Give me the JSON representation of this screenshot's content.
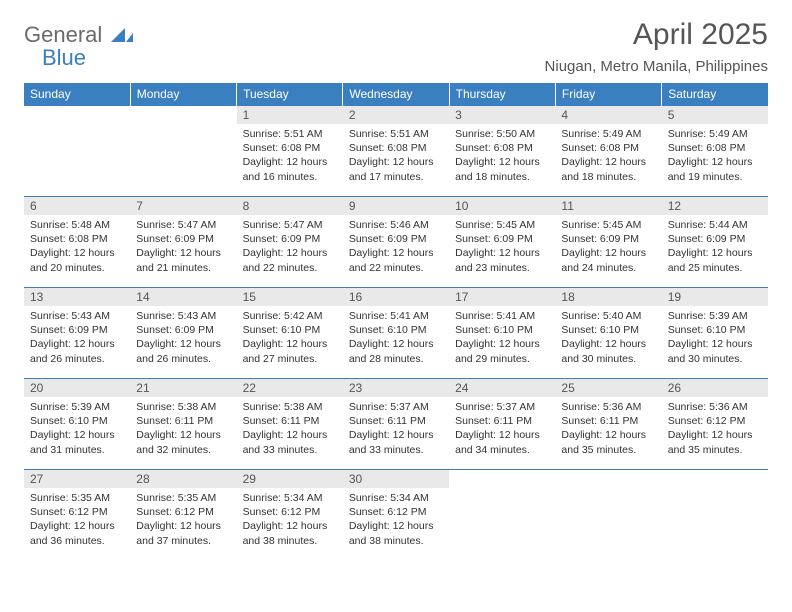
{
  "logo": {
    "word1": "General",
    "word2": "Blue"
  },
  "title": "April 2025",
  "location": "Niugan, Metro Manila, Philippines",
  "colors": {
    "header_bg": "#3a7fbf",
    "header_text": "#ffffff",
    "daynum_bg": "#e9e9e9",
    "text": "#333333",
    "title_text": "#555555",
    "row_border": "#3a7fbf"
  },
  "typography": {
    "title_fontsize": 30,
    "location_fontsize": 15,
    "dayheader_fontsize": 12,
    "cell_fontsize": 10.5
  },
  "day_headers": [
    "Sunday",
    "Monday",
    "Tuesday",
    "Wednesday",
    "Thursday",
    "Friday",
    "Saturday"
  ],
  "weeks": [
    [
      {
        "num": "",
        "lines": []
      },
      {
        "num": "",
        "lines": []
      },
      {
        "num": "1",
        "lines": [
          "Sunrise: 5:51 AM",
          "Sunset: 6:08 PM",
          "Daylight: 12 hours",
          "and 16 minutes."
        ]
      },
      {
        "num": "2",
        "lines": [
          "Sunrise: 5:51 AM",
          "Sunset: 6:08 PM",
          "Daylight: 12 hours",
          "and 17 minutes."
        ]
      },
      {
        "num": "3",
        "lines": [
          "Sunrise: 5:50 AM",
          "Sunset: 6:08 PM",
          "Daylight: 12 hours",
          "and 18 minutes."
        ]
      },
      {
        "num": "4",
        "lines": [
          "Sunrise: 5:49 AM",
          "Sunset: 6:08 PM",
          "Daylight: 12 hours",
          "and 18 minutes."
        ]
      },
      {
        "num": "5",
        "lines": [
          "Sunrise: 5:49 AM",
          "Sunset: 6:08 PM",
          "Daylight: 12 hours",
          "and 19 minutes."
        ]
      }
    ],
    [
      {
        "num": "6",
        "lines": [
          "Sunrise: 5:48 AM",
          "Sunset: 6:08 PM",
          "Daylight: 12 hours",
          "and 20 minutes."
        ]
      },
      {
        "num": "7",
        "lines": [
          "Sunrise: 5:47 AM",
          "Sunset: 6:09 PM",
          "Daylight: 12 hours",
          "and 21 minutes."
        ]
      },
      {
        "num": "8",
        "lines": [
          "Sunrise: 5:47 AM",
          "Sunset: 6:09 PM",
          "Daylight: 12 hours",
          "and 22 minutes."
        ]
      },
      {
        "num": "9",
        "lines": [
          "Sunrise: 5:46 AM",
          "Sunset: 6:09 PM",
          "Daylight: 12 hours",
          "and 22 minutes."
        ]
      },
      {
        "num": "10",
        "lines": [
          "Sunrise: 5:45 AM",
          "Sunset: 6:09 PM",
          "Daylight: 12 hours",
          "and 23 minutes."
        ]
      },
      {
        "num": "11",
        "lines": [
          "Sunrise: 5:45 AM",
          "Sunset: 6:09 PM",
          "Daylight: 12 hours",
          "and 24 minutes."
        ]
      },
      {
        "num": "12",
        "lines": [
          "Sunrise: 5:44 AM",
          "Sunset: 6:09 PM",
          "Daylight: 12 hours",
          "and 25 minutes."
        ]
      }
    ],
    [
      {
        "num": "13",
        "lines": [
          "Sunrise: 5:43 AM",
          "Sunset: 6:09 PM",
          "Daylight: 12 hours",
          "and 26 minutes."
        ]
      },
      {
        "num": "14",
        "lines": [
          "Sunrise: 5:43 AM",
          "Sunset: 6:09 PM",
          "Daylight: 12 hours",
          "and 26 minutes."
        ]
      },
      {
        "num": "15",
        "lines": [
          "Sunrise: 5:42 AM",
          "Sunset: 6:10 PM",
          "Daylight: 12 hours",
          "and 27 minutes."
        ]
      },
      {
        "num": "16",
        "lines": [
          "Sunrise: 5:41 AM",
          "Sunset: 6:10 PM",
          "Daylight: 12 hours",
          "and 28 minutes."
        ]
      },
      {
        "num": "17",
        "lines": [
          "Sunrise: 5:41 AM",
          "Sunset: 6:10 PM",
          "Daylight: 12 hours",
          "and 29 minutes."
        ]
      },
      {
        "num": "18",
        "lines": [
          "Sunrise: 5:40 AM",
          "Sunset: 6:10 PM",
          "Daylight: 12 hours",
          "and 30 minutes."
        ]
      },
      {
        "num": "19",
        "lines": [
          "Sunrise: 5:39 AM",
          "Sunset: 6:10 PM",
          "Daylight: 12 hours",
          "and 30 minutes."
        ]
      }
    ],
    [
      {
        "num": "20",
        "lines": [
          "Sunrise: 5:39 AM",
          "Sunset: 6:10 PM",
          "Daylight: 12 hours",
          "and 31 minutes."
        ]
      },
      {
        "num": "21",
        "lines": [
          "Sunrise: 5:38 AM",
          "Sunset: 6:11 PM",
          "Daylight: 12 hours",
          "and 32 minutes."
        ]
      },
      {
        "num": "22",
        "lines": [
          "Sunrise: 5:38 AM",
          "Sunset: 6:11 PM",
          "Daylight: 12 hours",
          "and 33 minutes."
        ]
      },
      {
        "num": "23",
        "lines": [
          "Sunrise: 5:37 AM",
          "Sunset: 6:11 PM",
          "Daylight: 12 hours",
          "and 33 minutes."
        ]
      },
      {
        "num": "24",
        "lines": [
          "Sunrise: 5:37 AM",
          "Sunset: 6:11 PM",
          "Daylight: 12 hours",
          "and 34 minutes."
        ]
      },
      {
        "num": "25",
        "lines": [
          "Sunrise: 5:36 AM",
          "Sunset: 6:11 PM",
          "Daylight: 12 hours",
          "and 35 minutes."
        ]
      },
      {
        "num": "26",
        "lines": [
          "Sunrise: 5:36 AM",
          "Sunset: 6:12 PM",
          "Daylight: 12 hours",
          "and 35 minutes."
        ]
      }
    ],
    [
      {
        "num": "27",
        "lines": [
          "Sunrise: 5:35 AM",
          "Sunset: 6:12 PM",
          "Daylight: 12 hours",
          "and 36 minutes."
        ]
      },
      {
        "num": "28",
        "lines": [
          "Sunrise: 5:35 AM",
          "Sunset: 6:12 PM",
          "Daylight: 12 hours",
          "and 37 minutes."
        ]
      },
      {
        "num": "29",
        "lines": [
          "Sunrise: 5:34 AM",
          "Sunset: 6:12 PM",
          "Daylight: 12 hours",
          "and 38 minutes."
        ]
      },
      {
        "num": "30",
        "lines": [
          "Sunrise: 5:34 AM",
          "Sunset: 6:12 PM",
          "Daylight: 12 hours",
          "and 38 minutes."
        ]
      },
      {
        "num": "",
        "lines": []
      },
      {
        "num": "",
        "lines": []
      },
      {
        "num": "",
        "lines": []
      }
    ]
  ]
}
